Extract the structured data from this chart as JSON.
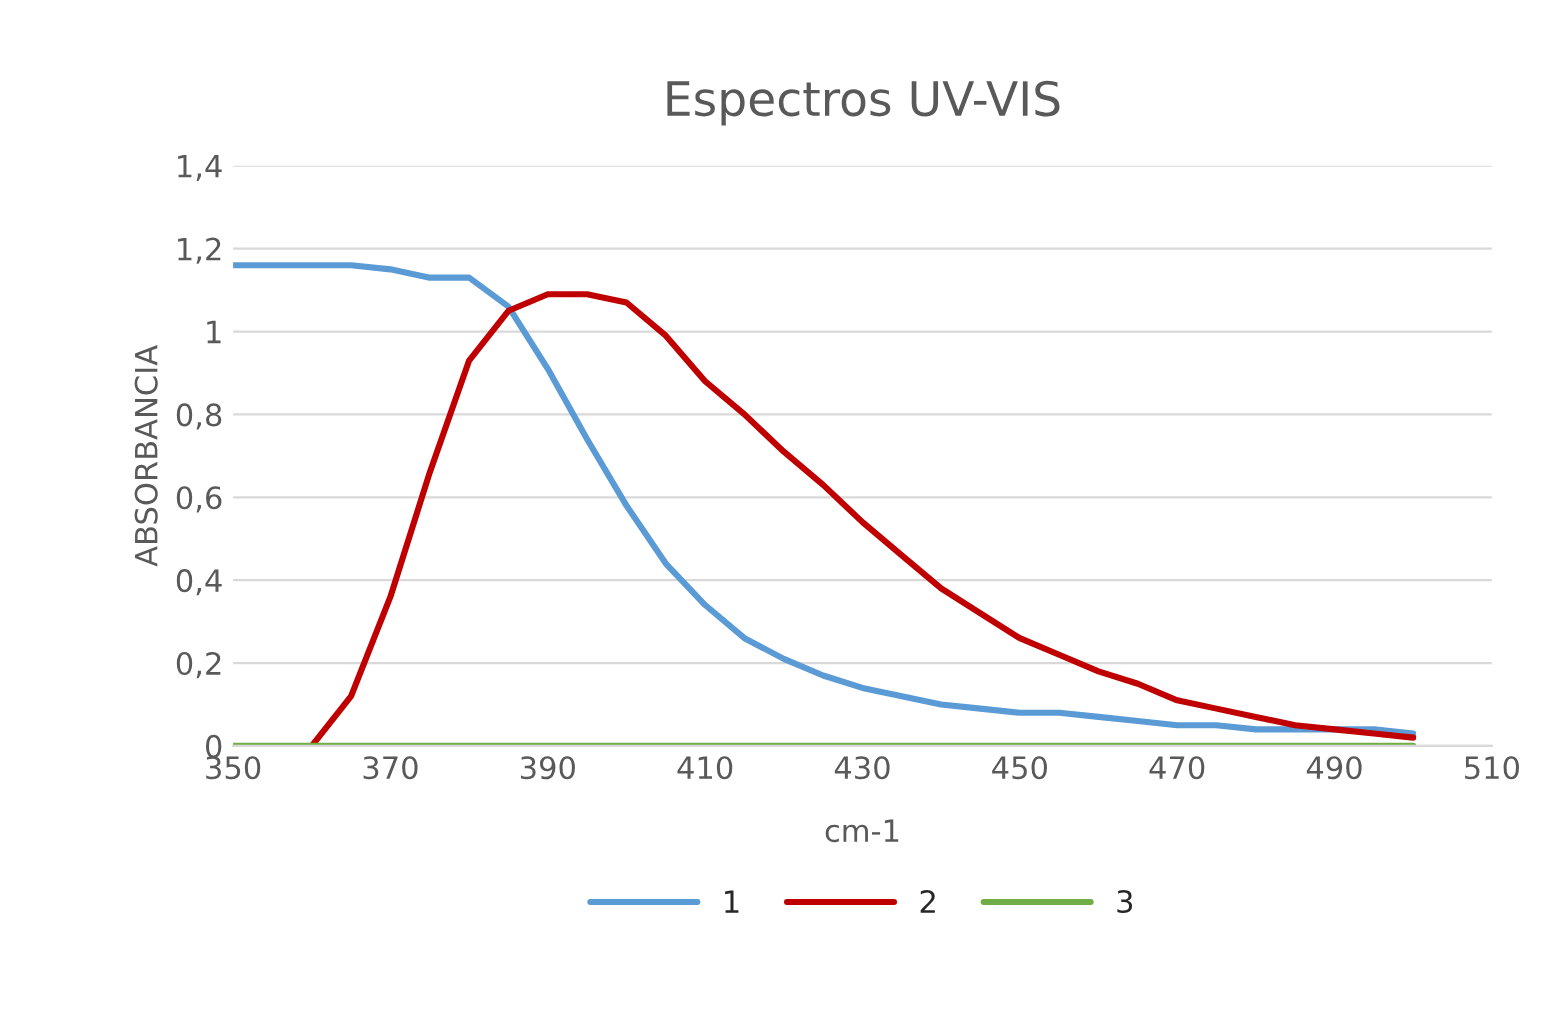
{
  "chart_data": {
    "type": "line",
    "title": "Espectros UV-VIS",
    "xlabel": "cm-1",
    "ylabel": "ABSORBANCIA",
    "xlim": [
      350,
      510
    ],
    "xticks": [
      350,
      370,
      390,
      410,
      430,
      450,
      470,
      490,
      510
    ],
    "ylim": [
      0,
      1.4
    ],
    "yticks": [
      0,
      {
        "value": 0.2,
        "label": "0,2"
      },
      {
        "value": 0.4,
        "label": "0,4"
      },
      {
        "value": 0.6,
        "label": "0,6"
      },
      {
        "value": 0.8,
        "label": "0,8"
      },
      1,
      {
        "value": 1.2,
        "label": "1,2"
      },
      {
        "value": 1.4,
        "label": "1,4"
      }
    ],
    "grid": "y",
    "legend": "bottom",
    "marker": "none",
    "line_style": "solid",
    "series": [
      {
        "name": "1",
        "color": "#5b9bd5",
        "x": [
          350,
          355,
          360,
          365,
          370,
          375,
          380,
          385,
          390,
          395,
          400,
          405,
          410,
          415,
          420,
          425,
          430,
          435,
          440,
          445,
          450,
          455,
          460,
          465,
          470,
          475,
          480,
          485,
          490,
          495,
          500
        ],
        "values": [
          1.16,
          1.16,
          1.16,
          1.16,
          1.15,
          1.13,
          1.13,
          1.06,
          0.91,
          0.74,
          0.58,
          0.44,
          0.34,
          0.26,
          0.21,
          0.17,
          0.14,
          0.12,
          0.1,
          0.09,
          0.08,
          0.08,
          0.07,
          0.06,
          0.05,
          0.05,
          0.04,
          0.04,
          0.04,
          0.04,
          0.03
        ]
      },
      {
        "name": "2",
        "color": "#c00000",
        "x": [
          360,
          365,
          370,
          375,
          380,
          385,
          390,
          395,
          400,
          405,
          410,
          415,
          420,
          425,
          430,
          435,
          440,
          445,
          450,
          455,
          460,
          465,
          470,
          475,
          480,
          485,
          490,
          495,
          500
        ],
        "values": [
          0,
          0.12,
          0.36,
          0.66,
          0.93,
          1.05,
          1.09,
          1.09,
          1.07,
          0.99,
          0.88,
          0.8,
          0.71,
          0.63,
          0.54,
          0.46,
          0.38,
          0.32,
          0.26,
          0.22,
          0.18,
          0.15,
          0.11,
          0.09,
          0.07,
          0.05,
          0.04,
          0.03,
          0.02
        ]
      },
      {
        "name": "3",
        "color": "#70ad47",
        "x": [
          350,
          500
        ],
        "values": [
          0,
          0
        ]
      }
    ]
  }
}
